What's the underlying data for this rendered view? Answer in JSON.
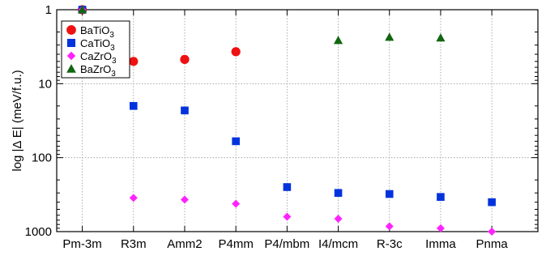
{
  "chart_data": {
    "type": "scatter",
    "title": "",
    "xlabel": "",
    "ylabel": "log |Δ E| (meV/f.u.)",
    "y_scale": "log",
    "y_inverted": true,
    "ylim": [
      1,
      1000
    ],
    "yticks": [
      {
        "value": 1,
        "label": "1"
      },
      {
        "value": 10,
        "label": "10"
      },
      {
        "value": 100,
        "label": "100"
      },
      {
        "value": 1000,
        "label": "1000"
      }
    ],
    "categories": [
      "Pm-3m",
      "R3m",
      "Amm2",
      "P4mm",
      "P4/mbm",
      "I4/mcm",
      "R-3c",
      "Imma",
      "Pnma"
    ],
    "grid": true,
    "legend_position": "top-left",
    "series": [
      {
        "name_base": "BaTiO",
        "name_sub": "3",
        "marker": "circle",
        "color": "#ee1111",
        "points": [
          [
            "Pm-3m",
            1
          ],
          [
            "R3m",
            5.0
          ],
          [
            "Amm2",
            4.7
          ],
          [
            "P4mm",
            3.7
          ]
        ]
      },
      {
        "name_base": "CaTiO",
        "name_sub": "3",
        "marker": "square",
        "color": "#0033dd",
        "points": [
          [
            "Pm-3m",
            1
          ],
          [
            "R3m",
            20
          ],
          [
            "Amm2",
            23
          ],
          [
            "P4mm",
            60
          ],
          [
            "P4/mbm",
            250
          ],
          [
            "I4/mcm",
            300
          ],
          [
            "R-3c",
            310
          ],
          [
            "Imma",
            340
          ],
          [
            "Pnma",
            400
          ]
        ]
      },
      {
        "name_base": "CaZrO",
        "name_sub": "3",
        "marker": "diamond",
        "color": "#ff22ff",
        "points": [
          [
            "Pm-3m",
            1
          ],
          [
            "R3m",
            350
          ],
          [
            "Amm2",
            370
          ],
          [
            "P4mm",
            420
          ],
          [
            "P4/mbm",
            630
          ],
          [
            "I4/mcm",
            670
          ],
          [
            "R-3c",
            850
          ],
          [
            "Imma",
            900
          ],
          [
            "Pnma",
            1000
          ]
        ]
      },
      {
        "name_base": "BaZrO",
        "name_sub": "3",
        "marker": "triangle",
        "color": "#116611",
        "points": [
          [
            "Pm-3m",
            1
          ],
          [
            "I4/mcm",
            2.6
          ],
          [
            "R-3c",
            2.35
          ],
          [
            "Imma",
            2.4
          ]
        ]
      }
    ]
  }
}
